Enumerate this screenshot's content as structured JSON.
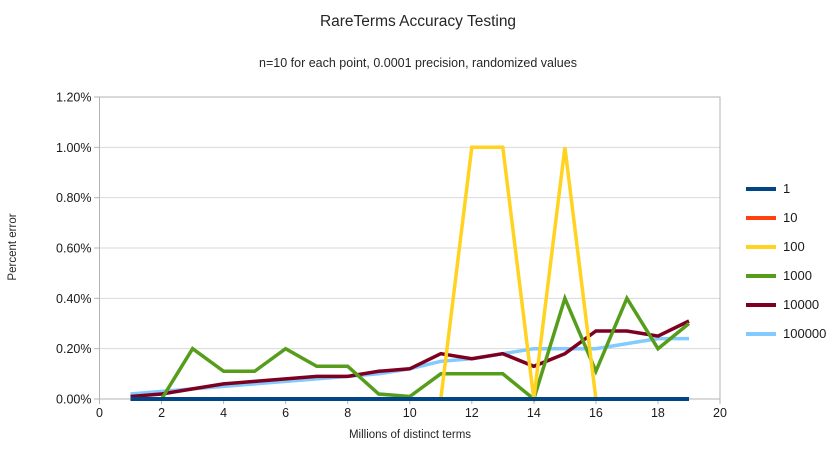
{
  "title": "RareTerms Accuracy Testing",
  "subtitle": "n=10 for each point, 0.0001 precision, randomized values",
  "chart_data": {
    "type": "line",
    "title": "RareTerms Accuracy Testing",
    "subtitle": "n=10 for each point, 0.0001 precision, randomized values",
    "xlabel": "Millions of distinct terms",
    "ylabel": "Percent error",
    "xlim": [
      0,
      20
    ],
    "ylim_percent": [
      0,
      1.2
    ],
    "x_tick_labels": [
      "0",
      "2",
      "4",
      "6",
      "8",
      "10",
      "12",
      "14",
      "16",
      "18",
      "20"
    ],
    "y_tick_labels": [
      "0.00%",
      "0.20%",
      "0.40%",
      "0.60%",
      "0.80%",
      "1.00%",
      "1.20%"
    ],
    "grid": "horizontal",
    "legend_position": "right",
    "x": [
      1,
      2,
      3,
      4,
      5,
      6,
      7,
      8,
      9,
      10,
      11,
      12,
      13,
      14,
      15,
      16,
      17,
      18,
      19
    ],
    "series": [
      {
        "name": "1",
        "color": "#004586",
        "values_percent": [
          0,
          0,
          0,
          0,
          0,
          0,
          0,
          0,
          0,
          0,
          0,
          0,
          0,
          0,
          0,
          0,
          0,
          0,
          0
        ]
      },
      {
        "name": "10",
        "color": "#ff420e",
        "values_percent": [
          0,
          0,
          0,
          0,
          0,
          0,
          0,
          0,
          0,
          0,
          0,
          0,
          0,
          0,
          0,
          0,
          0,
          0,
          0
        ]
      },
      {
        "name": "100",
        "color": "#ffd320",
        "values_percent": [
          0,
          0,
          0,
          0,
          0,
          0,
          0,
          0,
          0,
          0,
          0,
          1.0,
          1.0,
          0,
          1.0,
          0,
          0,
          0,
          0
        ]
      },
      {
        "name": "1000",
        "color": "#579d1c",
        "values_percent": [
          0,
          0,
          0.2,
          0.11,
          0.11,
          0.2,
          0.13,
          0.13,
          0.02,
          0.01,
          0.1,
          0.1,
          0.1,
          0,
          0.4,
          0.11,
          0.4,
          0.2,
          0.3
        ]
      },
      {
        "name": "10000",
        "color": "#7e0021",
        "values_percent": [
          0.01,
          0.02,
          0.04,
          0.06,
          0.07,
          0.08,
          0.09,
          0.09,
          0.11,
          0.12,
          0.18,
          0.16,
          0.18,
          0.13,
          0.18,
          0.27,
          0.27,
          0.25,
          0.31
        ]
      },
      {
        "name": "100000",
        "color": "#83caff",
        "values_percent": [
          0.02,
          0.03,
          0.04,
          0.05,
          0.06,
          0.07,
          0.08,
          0.09,
          0.1,
          0.12,
          0.15,
          0.16,
          0.18,
          0.2,
          0.2,
          0.2,
          0.22,
          0.24,
          0.24
        ]
      }
    ],
    "draw_order": [
      "100000",
      "10000",
      "1000",
      "100",
      "10",
      "1"
    ],
    "colors": {
      "gridline": "#d9d9d9",
      "plot_border": "#b3b3b3",
      "tick": "#b3b3b3",
      "text": "#1a1a1a"
    }
  }
}
